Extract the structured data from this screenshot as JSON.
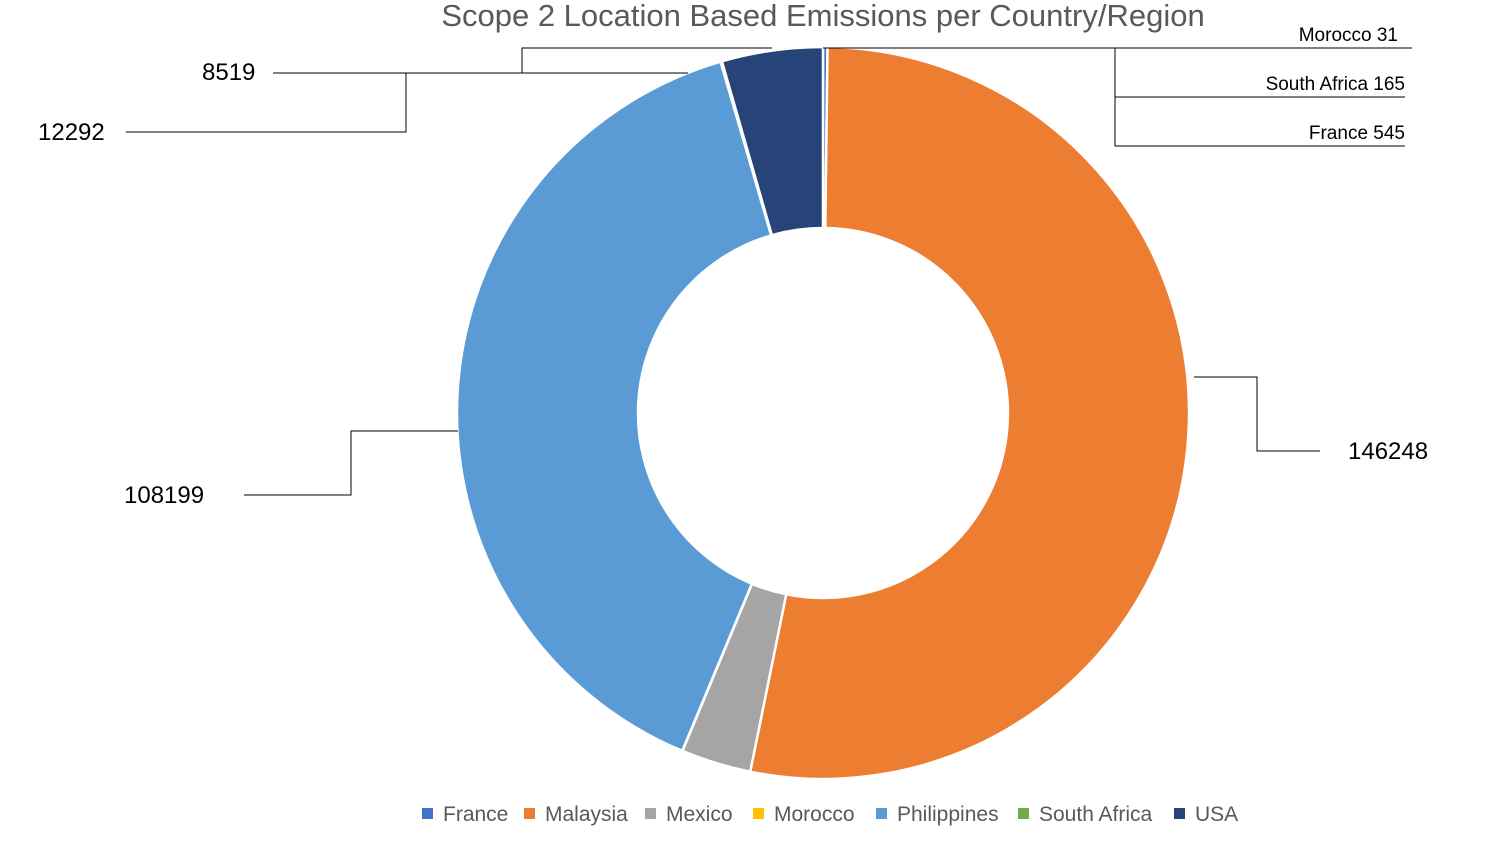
{
  "chart_data": {
    "type": "pie",
    "subtype": "doughnut",
    "title": "Scope 2 Location Based Emissions per Country/Region",
    "legend_position": "bottom",
    "categories": [
      "France",
      "Malaysia",
      "Mexico",
      "Morocco",
      "Philippines",
      "South Africa",
      "USA"
    ],
    "values": [
      545,
      146248,
      8519,
      31,
      108199,
      165,
      12292
    ],
    "colors": {
      "France": "#4472C4",
      "Malaysia": "#ED7D31",
      "Mexico": "#A5A5A5",
      "Morocco": "#FFC000",
      "Philippines": "#5B9BD5",
      "South Africa": "#70AD47",
      "USA": "#264478"
    },
    "data_labels": {
      "France": "France 545",
      "Malaysia": "146248",
      "Mexico": "8519",
      "Morocco": "Morocco 31",
      "Philippines": "108199",
      "South Africa": "South Africa 165",
      "USA": "12292"
    }
  }
}
